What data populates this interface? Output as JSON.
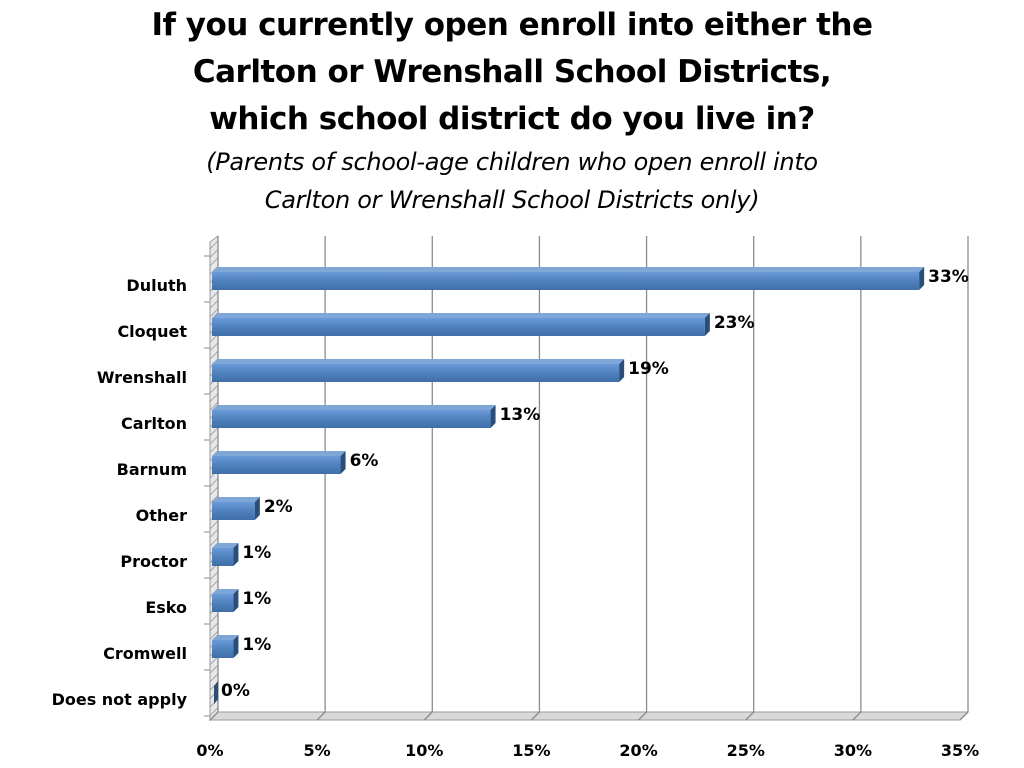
{
  "chart_data": {
    "type": "bar",
    "orientation": "horizontal",
    "title_lines": [
      "If you currently open enroll into either the",
      "Carlton or Wrenshall School Districts,",
      "which school district do you live in?"
    ],
    "subtitle_lines": [
      "(Parents of school-age children who open enroll into",
      "Carlton or Wrenshall School Districts only)"
    ],
    "categories": [
      "Duluth",
      "Cloquet",
      "Wrenshall",
      "Carlton",
      "Barnum",
      "Other",
      "Proctor",
      "Esko",
      "Cromwell",
      "Does not apply"
    ],
    "values": [
      33,
      23,
      19,
      13,
      6,
      2,
      1,
      1,
      1,
      0
    ],
    "data_labels": [
      "33%",
      "23%",
      "19%",
      "13%",
      "6%",
      "2%",
      "1%",
      "1%",
      "1%",
      "0%"
    ],
    "x_ticks": [
      "0%",
      "5%",
      "10%",
      "15%",
      "20%",
      "25%",
      "30%",
      "35%"
    ],
    "x_tick_values": [
      0,
      5,
      10,
      15,
      20,
      25,
      30,
      35
    ],
    "xlim": [
      0,
      35
    ],
    "xlabel": "",
    "ylabel": "",
    "grid": true,
    "style": "3d",
    "colors": {
      "bar_front": "#4f81bd",
      "bar_top": "#7ea6d6",
      "bar_side": "#2c4d75",
      "gridline": "#8c8c8c",
      "wall_hatch": "#bfbfbf"
    }
  }
}
